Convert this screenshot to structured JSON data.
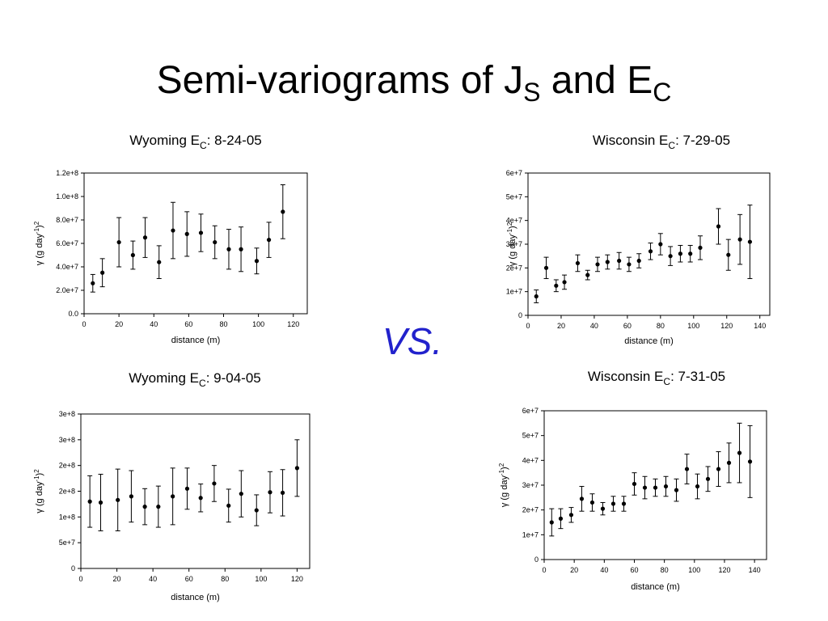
{
  "slide": {
    "title": [
      "Semi-variograms of J",
      "S",
      " and E",
      "C"
    ],
    "vs": "VS."
  },
  "chart_data": [
    {
      "type": "scatter",
      "title": [
        "Wyoming E",
        "C",
        ":  8-24-05"
      ],
      "xlabel": "distance (m)",
      "ylabel": [
        "γ (g day",
        "-1",
        ")",
        "2"
      ],
      "xlim": [
        0,
        128
      ],
      "xticks": [
        0,
        20,
        40,
        60,
        80,
        100,
        120
      ],
      "ylim": [
        0,
        120000000
      ],
      "yticks": [
        {
          "value": 0,
          "label": "0.0"
        },
        {
          "value": 20000000,
          "label": "2.0e+7"
        },
        {
          "value": 40000000,
          "label": "4.0e+7"
        },
        {
          "value": 60000000,
          "label": "6.0e+7"
        },
        {
          "value": 80000000,
          "label": "8.0e+7"
        },
        {
          "value": 100000000,
          "label": "1.0e+8"
        },
        {
          "value": 120000000,
          "label": "1.2e+8"
        }
      ],
      "color": "#000000",
      "x": [
        5,
        10.5,
        20,
        28,
        35,
        43,
        51,
        59,
        67,
        75,
        83,
        90,
        99,
        106,
        114
      ],
      "values": [
        26000000,
        35000000,
        61000000,
        50000000,
        65000000,
        44000000,
        71000000,
        68000000,
        69000000,
        61000000,
        55000000,
        55000000,
        45000000,
        63000000,
        87000000
      ],
      "errors": [
        7500000,
        12000000,
        21000000,
        12000000,
        17000000,
        14000000,
        24000000,
        19000000,
        16000000,
        14000000,
        17000000,
        19000000,
        11000000,
        15000000,
        23000000
      ]
    },
    {
      "type": "scatter",
      "title": [
        "Wisconsin E",
        "C",
        ":  7-29-05"
      ],
      "xlabel": "distance (m)",
      "ylabel": [
        "γ (g day",
        "-1",
        ")",
        "2"
      ],
      "xlim": [
        0,
        146
      ],
      "xticks": [
        0,
        20,
        40,
        60,
        80,
        100,
        120,
        140
      ],
      "ylim": [
        0,
        60000000
      ],
      "yticks": [
        0,
        {
          "value": 10000000,
          "label": "1e+7"
        },
        {
          "value": 20000000,
          "label": "2e+7"
        },
        {
          "value": 30000000,
          "label": "3e+7"
        },
        {
          "value": 40000000,
          "label": "4e+7"
        },
        {
          "value": 50000000,
          "label": "5e+7"
        },
        {
          "value": 60000000,
          "label": "6e+7"
        }
      ],
      "color": "#000000",
      "x": [
        5,
        11,
        17,
        22,
        30,
        36,
        42,
        48,
        55,
        61,
        67,
        74,
        80,
        86,
        92,
        98,
        104,
        115,
        121,
        128,
        134
      ],
      "values": [
        8000000,
        20000000,
        12500000,
        14000000,
        22000000,
        17000000,
        21500000,
        22500000,
        23000000,
        21500000,
        23000000,
        27000000,
        30000000,
        25000000,
        26000000,
        26000000,
        28500000,
        37500000,
        25500000,
        32000000,
        31000000
      ],
      "errors": [
        2700000,
        4500000,
        2500000,
        3000000,
        3500000,
        2000000,
        3000000,
        3000000,
        3500000,
        3000000,
        3000000,
        3500000,
        4500000,
        4000000,
        3500000,
        3500000,
        5000000,
        7500000,
        6500000,
        10500000,
        15500000
      ]
    },
    {
      "type": "scatter",
      "title": [
        "Wyoming E",
        "C",
        ":  9-04-05"
      ],
      "xlabel": "distance (m)",
      "ylabel": [
        "γ (g day",
        "-1",
        ")",
        "2"
      ],
      "xlim": [
        0,
        127
      ],
      "xticks": [
        0,
        20,
        40,
        60,
        80,
        100,
        120
      ],
      "ylim": [
        0,
        300000000
      ],
      "yticks": [
        0,
        {
          "value": 50000000,
          "label": "5e+7"
        },
        {
          "value": 100000000,
          "label": "1e+8"
        },
        {
          "value": 150000000,
          "label": "2e+8"
        },
        {
          "value": 200000000,
          "label": "2e+8"
        },
        {
          "value": 250000000,
          "label": "3e+8"
        },
        {
          "value": 300000000,
          "label": "3e+8"
        }
      ],
      "color": "#000000",
      "x": [
        5,
        11,
        20.5,
        28,
        35.5,
        43,
        51,
        59,
        66.5,
        74,
        82,
        89,
        97.5,
        105,
        112,
        120
      ],
      "values": [
        130000000,
        128000000,
        133000000,
        140000000,
        120000000,
        120000000,
        140000000,
        155000000,
        137000000,
        165000000,
        122000000,
        145000000,
        113000000,
        148000000,
        147000000,
        195000000
      ],
      "errors": [
        50000000,
        55000000,
        60000000,
        50000000,
        35000000,
        40000000,
        55000000,
        40000000,
        27000000,
        35000000,
        32000000,
        45000000,
        30000000,
        40000000,
        45000000,
        55000000
      ]
    },
    {
      "type": "scatter",
      "title": [
        "Wisconsin E",
        "C",
        ":  7-31-05"
      ],
      "xlabel": "distance (m)",
      "ylabel": [
        "γ (g day",
        "-1",
        ")",
        "2"
      ],
      "xlim": [
        0,
        148
      ],
      "xticks": [
        0,
        20,
        40,
        60,
        80,
        100,
        120,
        140
      ],
      "ylim": [
        0,
        60000000
      ],
      "yticks": [
        0,
        {
          "value": 10000000,
          "label": "1e+7"
        },
        {
          "value": 20000000,
          "label": "2e+7"
        },
        {
          "value": 30000000,
          "label": "3e+7"
        },
        {
          "value": 40000000,
          "label": "4e+7"
        },
        {
          "value": 50000000,
          "label": "5e+7"
        },
        {
          "value": 60000000,
          "label": "6e+7"
        }
      ],
      "color": "#000000",
      "x": [
        5,
        11,
        18,
        25,
        32,
        39,
        46,
        53,
        60,
        67,
        74,
        81,
        88,
        95,
        102,
        109,
        116,
        123,
        130,
        137
      ],
      "values": [
        15000000,
        16500000,
        18000000,
        24500000,
        23000000,
        20500000,
        22500000,
        22500000,
        30500000,
        29000000,
        29000000,
        29500000,
        28000000,
        36500000,
        29500000,
        32500000,
        36500000,
        39000000,
        43000000,
        39500000
      ],
      "errors": [
        5500000,
        4000000,
        3000000,
        5000000,
        3500000,
        2500000,
        3000000,
        3000000,
        4500000,
        4500000,
        3500000,
        4000000,
        4500000,
        6000000,
        5000000,
        5000000,
        7000000,
        8000000,
        12000000,
        14500000
      ]
    }
  ]
}
